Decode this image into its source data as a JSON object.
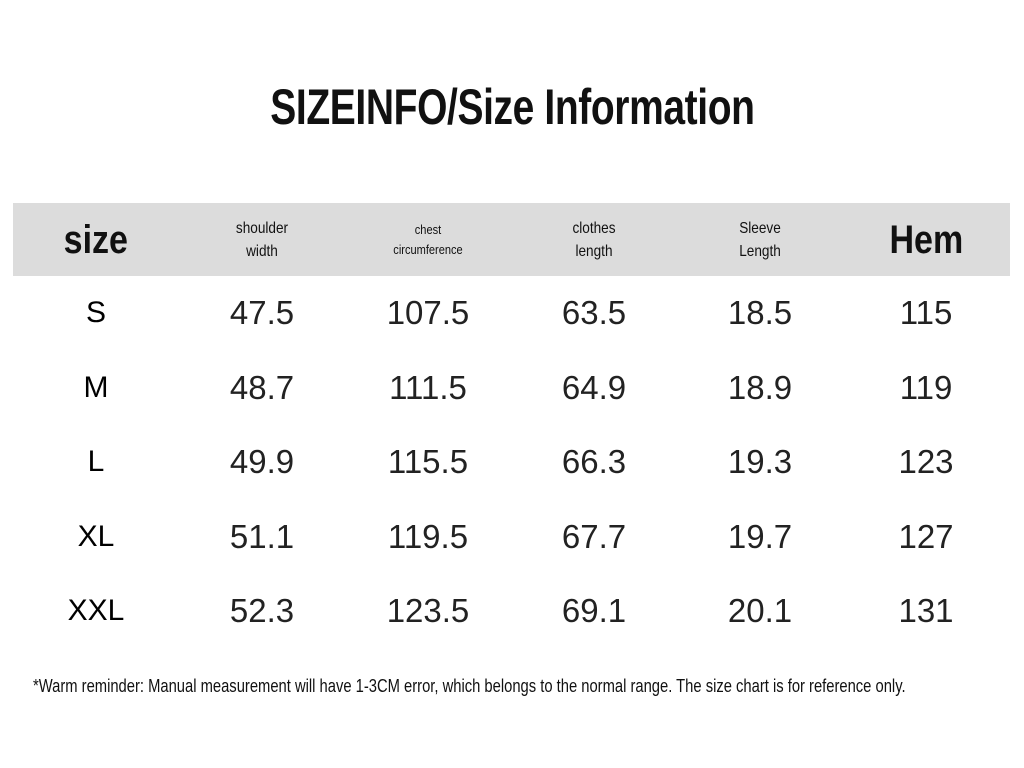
{
  "title": "SIZEINFO/Size Information",
  "table": {
    "header": [
      "size",
      "shoulder width",
      "chest circumference",
      "clothes length",
      "Sleeve Length",
      "Hem"
    ],
    "rows": [
      [
        "S",
        "47.5",
        "107.5",
        "63.5",
        "18.5",
        "115"
      ],
      [
        "M",
        "48.7",
        "111.5",
        "64.9",
        "18.9",
        "119"
      ],
      [
        "L",
        "49.9",
        "115.5",
        "66.3",
        "19.3",
        "123"
      ],
      [
        "XL",
        "51.1",
        "119.5",
        "67.7",
        "19.7",
        "127"
      ],
      [
        "XXL",
        "52.3",
        "123.5",
        "69.1",
        "20.1",
        "131"
      ]
    ]
  },
  "footnote": "*Warm reminder: Manual measurement will have 1-3CM error, which belongs to the normal range. The size chart is for reference only."
}
